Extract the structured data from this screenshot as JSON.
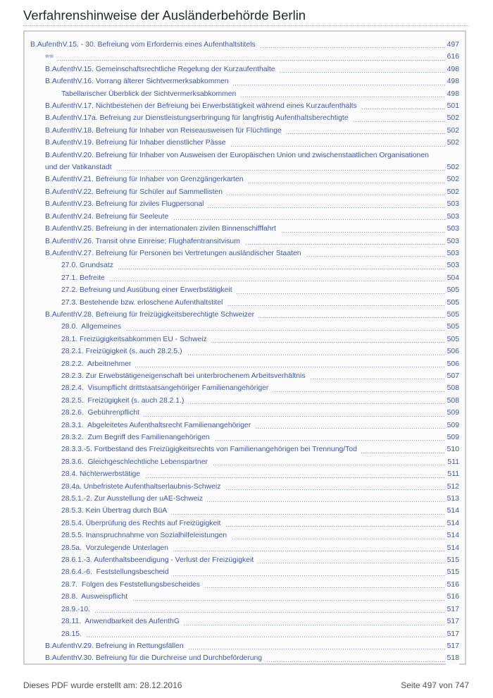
{
  "header": {
    "title": "Verfahrenshinweise der Ausländerbehörde Berlin"
  },
  "toc": [
    {
      "level": 0,
      "text": "B.AufenthV.15. - 30. Befreiung vom Erfordernis eines Aufenthaltstitels",
      "page": "497"
    },
    {
      "level": 1,
      "text": "==",
      "page": "616"
    },
    {
      "level": 1,
      "text": "B.AufenthV.15. Gemeinschaftsrechtliche Regelung der Kurzaufenthalte",
      "page": "498"
    },
    {
      "level": 1,
      "text": "B.AufenthV.16. Vorrang älterer Sichtvermerksabkommen",
      "page": "498"
    },
    {
      "level": 2,
      "text": "Tabellarischer Überblick der Sichtvermerksabkommen",
      "page": "498"
    },
    {
      "level": 1,
      "text": "B.AufenthV.17. Nichtbestehen der Befreiung bei Erwerbstätigkeit während eines Kurzaufenthalts",
      "page": "501"
    },
    {
      "level": 1,
      "text": "B.AufenthV.17a. Befreiung zur Dienstleistungserbringung für langfristig Aufenthaltsberechtigte",
      "page": "502"
    },
    {
      "level": 1,
      "text": "B.AufenthV.18. Befreiung für Inhaber von Reiseausweisen für Flüchtlinge",
      "page": "502"
    },
    {
      "level": 1,
      "text": "B.AufenthV.19. Befreiung für Inhaber dienstlicher Pässe",
      "page": "502"
    },
    {
      "level": 1,
      "text": "B.AufenthV.20. Befreiung für Inhaber von Ausweisen der Europäischen Union und zwischenstaatlichen Organisationen und der Vatikanstadt",
      "page": "502"
    },
    {
      "level": 1,
      "text": "B.AufenthV.21. Befreiung für Inhaber von Grenzgängerkarten",
      "page": "502"
    },
    {
      "level": 1,
      "text": "B.AufenthV.22. Befreiung für Schüler auf Sammellisten",
      "page": "502"
    },
    {
      "level": 1,
      "text": "B.AufenthV.23. Befreiung für ziviles Flugpersonal",
      "page": "503"
    },
    {
      "level": 1,
      "text": "B.AufenthV.24. Befreiung für Seeleute",
      "page": "503"
    },
    {
      "level": 1,
      "text": "B.AufenthV.25. Befreiung in der internationalen zivilen Binnenschifffahrt",
      "page": "503"
    },
    {
      "level": 1,
      "text": "B.AufenthV.26. Transit ohne Einreise; Flughafentransitvisum",
      "page": "503"
    },
    {
      "level": 1,
      "text": "B.AufenthV.27. Befreiung für Personen bei Vertretungen ausländischer Staaten",
      "page": "503"
    },
    {
      "level": 2,
      "text": "27.0. Grundsatz",
      "page": "503"
    },
    {
      "level": 2,
      "text": "27.1. Befreite",
      "page": "504"
    },
    {
      "level": 2,
      "text": "27.2. Befreiung und Ausübung einer Erwerbstätigkeit",
      "page": "505"
    },
    {
      "level": 2,
      "text": "27.3. Bestehende bzw. erloschene Aufenthaltstitel",
      "page": "505"
    },
    {
      "level": 1,
      "text": "B.AufenthV.28. Befreiung für freizügigkeitsberechtigte Schweizer",
      "page": "505"
    },
    {
      "level": 2,
      "text": "28.0.  Allgemeines",
      "page": "505"
    },
    {
      "level": 2,
      "text": "28.1. Freizügigkeitsabkommen EU - Schweiz",
      "page": "505"
    },
    {
      "level": 2,
      "text": "28.2.1. Freizügigkeit (s. auch 28.2.5.)",
      "page": "506"
    },
    {
      "level": 2,
      "text": "28.2.2.  Arbeitnehmer",
      "page": "506"
    },
    {
      "level": 2,
      "text": "28.2.3. Zur Erwebstätigeneigenschaft bei unterbrochenem Arbeitsverhältnis",
      "page": "507"
    },
    {
      "level": 2,
      "text": "28.2.4.  Visumpflicht drittstaatsangehöriger Familienangehöriger",
      "page": "508"
    },
    {
      "level": 2,
      "text": "28.2.5.  Freizügigkeit (s. auch 28.2.1.)",
      "page": "508"
    },
    {
      "level": 2,
      "text": "28.2.6.  Gebührenpflicht",
      "page": "509"
    },
    {
      "level": 2,
      "text": "28.3.1.  Abgeleitetes Aufenthaltsrecht Familienangehöriger",
      "page": "509"
    },
    {
      "level": 2,
      "text": "28.3.2.  Zum Begriff des Familienangehörigen",
      "page": "509"
    },
    {
      "level": 2,
      "text": "28.3.3.-5. Fortbestand des Freizügigkeitsrechts von Familienangehörigen bei Trennung/Tod",
      "page": "510"
    },
    {
      "level": 2,
      "text": "28.3.6.  Gleichgeschlechtliche Lebenspartner",
      "page": "511"
    },
    {
      "level": 2,
      "text": "28.4. Nichterwerbstätige",
      "page": "511"
    },
    {
      "level": 2,
      "text": "28.4a. Unbefristete Aufenthaltserlaubnis-Schweiz",
      "page": "512"
    },
    {
      "level": 2,
      "text": "28.5.1.-2. Zur Ausstellung der uAE-Schweiz",
      "page": "513"
    },
    {
      "level": 2,
      "text": "28.5.3. Kein Übertrag durch BüA",
      "page": "514"
    },
    {
      "level": 2,
      "text": "28.5.4. Überprüfung des Rechts auf Freizügigkeit",
      "page": "514"
    },
    {
      "level": 2,
      "text": "28.5.5. Inanspruchnahme von Sozialhilfeleistungen",
      "page": "514"
    },
    {
      "level": 2,
      "text": "28.5a.  Vorzulegende Unterlagen",
      "page": "514"
    },
    {
      "level": 2,
      "text": "28.6.1.-3. Aufenthaltsbeendigung - Verlust der Freizügigkeit",
      "page": "515"
    },
    {
      "level": 2,
      "text": "28.6.4.-6.  Feststellungsbescheid",
      "page": "515"
    },
    {
      "level": 2,
      "text": "28.7.  Folgen des Feststellungsbescheides",
      "page": "516"
    },
    {
      "level": 2,
      "text": "28.8.  Ausweispflicht",
      "page": "516"
    },
    {
      "level": 2,
      "text": "28.9.-10.",
      "page": "517"
    },
    {
      "level": 2,
      "text": "28.11.  Anwendbarkeit des AufenthG",
      "page": "517"
    },
    {
      "level": 2,
      "text": "28.15.",
      "page": "517"
    },
    {
      "level": 1,
      "text": "B.AufenthV.29. Befreiung in Rettungsfällen",
      "page": "517"
    },
    {
      "level": 1,
      "text": "B.AufenthV.30. Befreiung für die Durchreise und Durchbeförderung",
      "page": "518"
    }
  ],
  "footer": {
    "created": "Dieses PDF wurde erstellt am: 28.12.2016",
    "page_info": "Seite 497 von 747"
  },
  "colors": {
    "link": "#3d5aa8",
    "title": "#1e2d28",
    "footer": "#555555"
  }
}
